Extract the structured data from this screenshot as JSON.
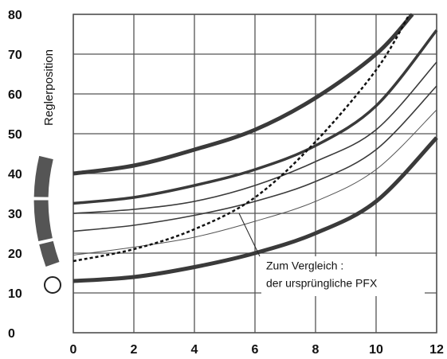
{
  "chart_data": {
    "type": "line",
    "y_label": "Reglerposition",
    "annotation": [
      "Zum Vergleich :",
      "der ursprüngliche PFX"
    ],
    "xlim": [
      0,
      12
    ],
    "xticks": [
      0,
      2,
      4,
      6,
      8,
      10,
      12
    ],
    "ylim": [
      0,
      80
    ],
    "yticks": [
      0,
      10,
      20,
      30,
      40,
      50,
      60,
      70,
      80
    ],
    "grid": true,
    "series": [
      {
        "color": "#3a3a3a",
        "x": [
          0,
          2,
          4,
          6,
          8,
          10,
          11.2
        ],
        "values": [
          40,
          42,
          46,
          51,
          59,
          70,
          80
        ]
      },
      {
        "color": "#3a3a3a",
        "x": [
          0,
          2,
          4,
          6,
          8,
          10,
          12
        ],
        "values": [
          32.5,
          34,
          37,
          41,
          47,
          57,
          76
        ]
      },
      {
        "color": "#3a3a3a",
        "x": [
          0,
          2,
          4,
          6,
          8,
          10,
          12
        ],
        "values": [
          30,
          31,
          33,
          37,
          43,
          51,
          68
        ]
      },
      {
        "color": "#3a3a3a",
        "x": [
          0,
          2,
          4,
          6,
          8,
          10,
          12
        ],
        "values": [
          25.5,
          27,
          29.5,
          33,
          38,
          46,
          62
        ]
      },
      {
        "color": "#555555",
        "x": [
          0,
          2,
          4,
          6,
          8,
          10,
          12
        ],
        "values": [
          19.5,
          21.5,
          24,
          28,
          33,
          41,
          56
        ]
      },
      {
        "color": "#111111",
        "x": [
          0,
          2,
          4,
          6,
          8,
          10,
          11.1
        ],
        "values": [
          18,
          21,
          26,
          34,
          48,
          66,
          80
        ]
      },
      {
        "color": "#3a3a3a",
        "x": [
          0,
          2,
          4,
          6,
          8,
          10,
          12
        ],
        "values": [
          13,
          14,
          16.5,
          20,
          25,
          33,
          49
        ]
      }
    ]
  }
}
